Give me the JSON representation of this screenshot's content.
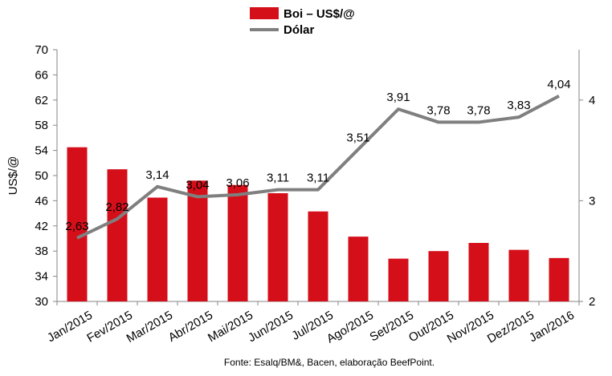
{
  "chart_data": {
    "type": "bar+line",
    "categories": [
      "Jan/2015",
      "Fev/2015",
      "Mar/2015",
      "Abr/2015",
      "Mai/2015",
      "Jun/2015",
      "Jul/2015",
      "Ago/2015",
      "Set/2015",
      "Out/2015",
      "Nov/2015",
      "Dez/2015",
      "Jan/2016"
    ],
    "series": [
      {
        "name": "Boi – US$/@",
        "type": "bar",
        "axis": "left",
        "color": "#d40f1a",
        "values": [
          54.5,
          51.0,
          46.5,
          49.2,
          48.5,
          47.2,
          44.3,
          40.3,
          36.8,
          38.0,
          39.3,
          38.2,
          36.9
        ]
      },
      {
        "name": "Dólar",
        "type": "line",
        "axis": "right",
        "color": "#7f7f7f",
        "values": [
          2.63,
          2.82,
          3.14,
          3.04,
          3.06,
          3.11,
          3.11,
          3.51,
          3.91,
          3.78,
          3.78,
          3.83,
          4.04
        ],
        "labels": [
          "2,63",
          "2,82",
          "3,14",
          "3,04",
          "3,06",
          "3,11",
          "3,11",
          "3,51",
          "3,91",
          "3,78",
          "3,78",
          "3,83",
          "4,04"
        ]
      }
    ],
    "ylabel": "US$/@",
    "ylim": [
      30,
      70
    ],
    "yticks": [
      "30",
      "34",
      "38",
      "42",
      "46",
      "50",
      "54",
      "58",
      "62",
      "66",
      "70"
    ],
    "y2lim": [
      2,
      4.5
    ],
    "y2ticks": [
      "2",
      "3",
      "4"
    ],
    "legend": "top-center",
    "grid": false,
    "source": "Fonte: Esalq/BM&, Bacen, elaboração BeefPoint."
  }
}
